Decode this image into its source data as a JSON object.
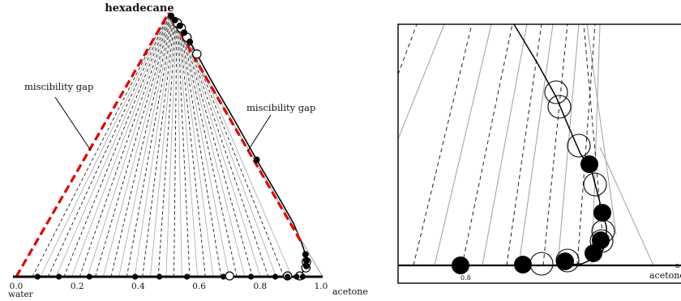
{
  "left_panel": {
    "apex_label": "hexadecane",
    "gap_label_left": "miscibility gap",
    "gap_label_right": "miscibility gap",
    "right_axis_label": "acetone",
    "origin_sublabel": "water",
    "x_ticks": [
      "0.0",
      "0.2",
      "0.4",
      "0.6",
      "0.8",
      "1.0"
    ],
    "base_filled_points": [
      0.07,
      0.14,
      0.24,
      0.39,
      0.47,
      0.56,
      0.68,
      0.77,
      0.85,
      0.89,
      0.92,
      0.94
    ],
    "base_open_points": [
      0.7,
      0.89,
      0.93
    ],
    "edge_filled_points": [
      0.02,
      0.05,
      0.09,
      0.12,
      0.16,
      0.45,
      0.8,
      0.85,
      0.9
    ],
    "edge_open_points": [
      0.07,
      0.1,
      0.14,
      0.2,
      0.86,
      0.92
    ]
  },
  "right_panel": {
    "axis_label": "acetone",
    "axis_label_cut": "a",
    "tick_label": "0.8"
  },
  "colors": {
    "miscibility_gap": "#e00000",
    "tie_line_solid": "#a8a8a8",
    "tie_line_dashed": "#222222",
    "marker": "#000000"
  }
}
